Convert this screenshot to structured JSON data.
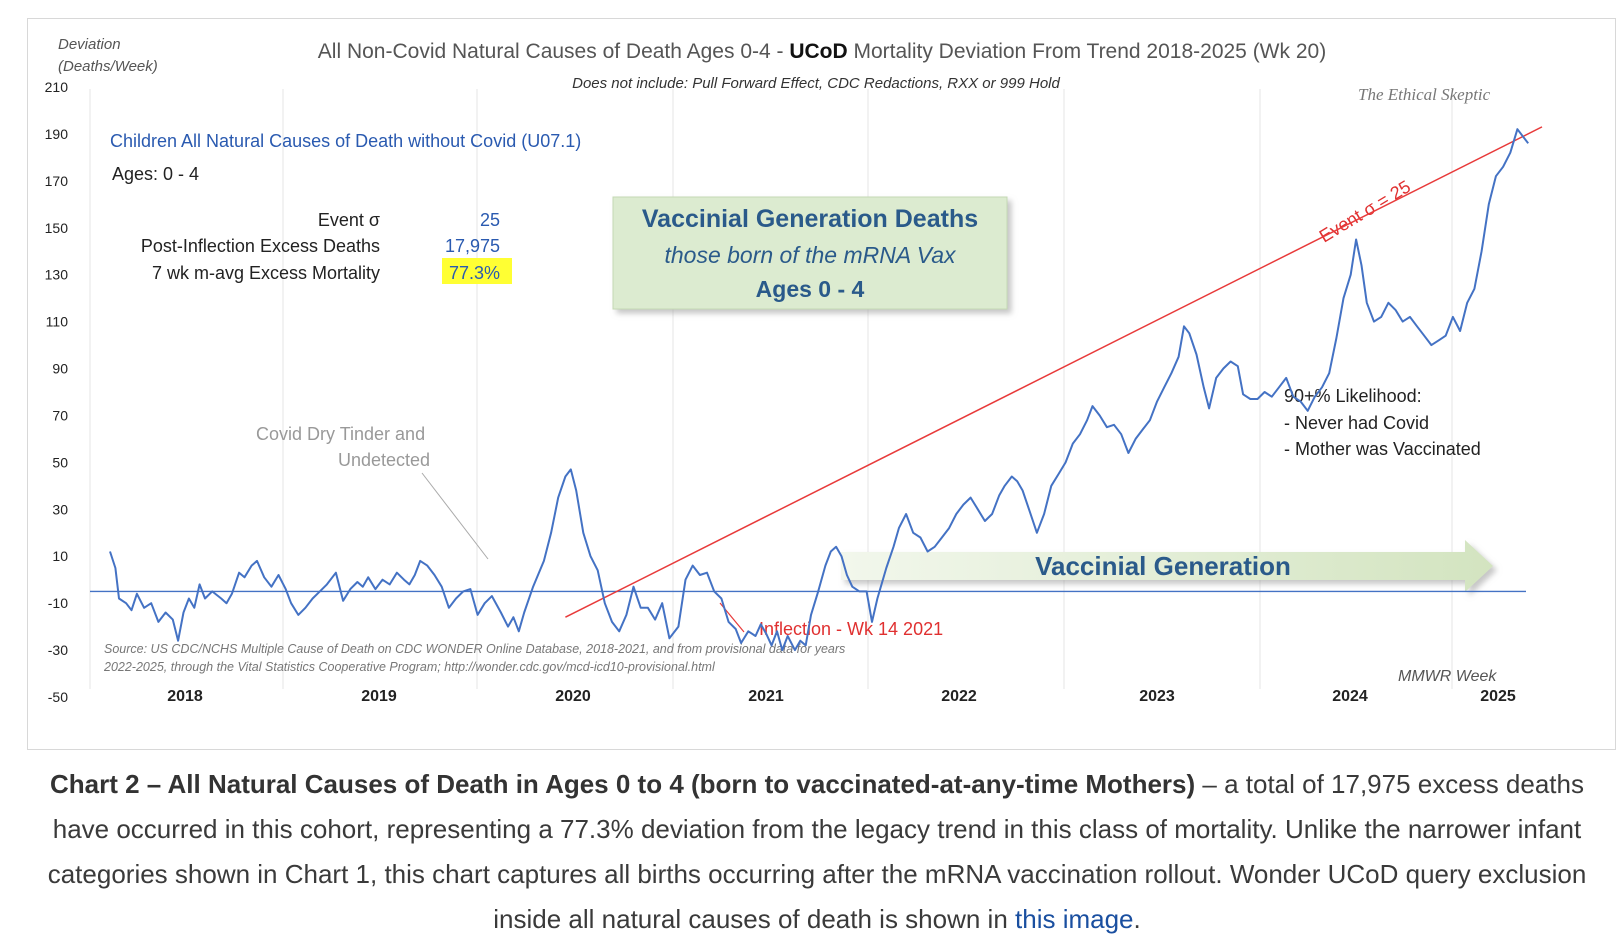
{
  "chart_data": {
    "type": "line",
    "title_pre": "All Non-Covid Natural Causes of Death Ages 0-4 - ",
    "title_bold": "UCoD",
    "title_post": " Mortality Deviation From Trend  2018-2025 (Wk 20)",
    "subtitle": "Does not include: Pull Forward Effect,  CDC Redactions, RXX or 999 Hold",
    "ylabel_line1": "Deviation",
    "ylabel_line2": "(Deaths/Week)",
    "xlabel": "MMWR Week",
    "brand": "The Ethical Skeptic",
    "ylim": [
      -50,
      210
    ],
    "y_ticks": [
      210,
      190,
      170,
      150,
      130,
      110,
      90,
      70,
      50,
      30,
      10,
      -10,
      -30,
      -50
    ],
    "x_years": [
      {
        "label": "2018",
        "x": 2018.5
      },
      {
        "label": "2019",
        "x": 2019.5
      },
      {
        "label": "2020",
        "x": 2020.5
      },
      {
        "label": "2021",
        "x": 2021.5
      },
      {
        "label": "2022",
        "x": 2022.5
      },
      {
        "label": "2023",
        "x": 2023.5
      },
      {
        "label": "2024",
        "x": 2024.5
      },
      {
        "label": "2025",
        "x": 2025.25
      }
    ],
    "year_gridlines": [
      2018,
      2019,
      2020,
      2021,
      2022,
      2023,
      2024,
      2025
    ],
    "baseline": -5,
    "series": [
      {
        "color": "#4472c4",
        "points": [
          [
            2018.0,
            12
          ],
          [
            2018.03,
            5
          ],
          [
            2018.05,
            -8
          ],
          [
            2018.09,
            -10
          ],
          [
            2018.12,
            -13
          ],
          [
            2018.15,
            -6
          ],
          [
            2018.19,
            -12
          ],
          [
            2018.23,
            -10
          ],
          [
            2018.27,
            -18
          ],
          [
            2018.31,
            -14
          ],
          [
            2018.35,
            -17
          ],
          [
            2018.38,
            -26
          ],
          [
            2018.41,
            -14
          ],
          [
            2018.44,
            -8
          ],
          [
            2018.47,
            -12
          ],
          [
            2018.5,
            -2
          ],
          [
            2018.53,
            -8
          ],
          [
            2018.57,
            -5
          ],
          [
            2018.62,
            -8
          ],
          [
            2018.65,
            -10
          ],
          [
            2018.68,
            -6
          ],
          [
            2018.72,
            3
          ],
          [
            2018.75,
            1
          ],
          [
            2018.79,
            6
          ],
          [
            2018.82,
            8
          ],
          [
            2018.86,
            1
          ],
          [
            2018.9,
            -3
          ],
          [
            2018.94,
            2
          ],
          [
            2018.98,
            -4
          ],
          [
            2019.01,
            -10
          ],
          [
            2019.05,
            -15
          ],
          [
            2019.09,
            -12
          ],
          [
            2019.13,
            -8
          ],
          [
            2019.17,
            -5
          ],
          [
            2019.21,
            -2
          ],
          [
            2019.26,
            3
          ],
          [
            2019.3,
            -9
          ],
          [
            2019.34,
            -4
          ],
          [
            2019.38,
            -1
          ],
          [
            2019.41,
            -3
          ],
          [
            2019.44,
            1
          ],
          [
            2019.48,
            -4
          ],
          [
            2019.52,
            0
          ],
          [
            2019.56,
            -2
          ],
          [
            2019.6,
            3
          ],
          [
            2019.64,
            0
          ],
          [
            2019.67,
            -2
          ],
          [
            2019.7,
            2
          ],
          [
            2019.73,
            8
          ],
          [
            2019.77,
            6
          ],
          [
            2019.81,
            2
          ],
          [
            2019.85,
            -3
          ],
          [
            2019.89,
            -12
          ],
          [
            2019.93,
            -8
          ],
          [
            2019.97,
            -5
          ],
          [
            2020.01,
            -4
          ],
          [
            2020.05,
            -15
          ],
          [
            2020.09,
            -10
          ],
          [
            2020.13,
            -7
          ],
          [
            2020.18,
            -14
          ],
          [
            2020.22,
            -20
          ],
          [
            2020.25,
            -16
          ],
          [
            2020.28,
            -22
          ],
          [
            2020.31,
            -14
          ],
          [
            2020.36,
            -3
          ],
          [
            2020.42,
            8
          ],
          [
            2020.46,
            20
          ],
          [
            2020.5,
            35
          ],
          [
            2020.54,
            44
          ],
          [
            2020.57,
            47
          ],
          [
            2020.6,
            38
          ],
          [
            2020.64,
            20
          ],
          [
            2020.68,
            10
          ],
          [
            2020.72,
            4
          ],
          [
            2020.76,
            -10
          ],
          [
            2020.8,
            -18
          ],
          [
            2020.84,
            -22
          ],
          [
            2020.88,
            -15
          ],
          [
            2020.92,
            -3
          ],
          [
            2020.96,
            -12
          ],
          [
            2021.0,
            -12
          ],
          [
            2021.04,
            -17
          ],
          [
            2021.08,
            -10
          ],
          [
            2021.12,
            -25
          ],
          [
            2021.17,
            -20
          ],
          [
            2021.21,
            0
          ],
          [
            2021.25,
            6
          ],
          [
            2021.29,
            2
          ],
          [
            2021.33,
            3
          ],
          [
            2021.37,
            -5
          ],
          [
            2021.41,
            -8
          ],
          [
            2021.45,
            -18
          ],
          [
            2021.49,
            -21
          ],
          [
            2021.52,
            -27
          ],
          [
            2021.56,
            -22
          ],
          [
            2021.6,
            -24
          ],
          [
            2021.63,
            -19
          ],
          [
            2021.66,
            -23
          ],
          [
            2021.69,
            -28
          ],
          [
            2021.72,
            -22
          ],
          [
            2021.75,
            -30
          ],
          [
            2021.78,
            -24
          ],
          [
            2021.82,
            -30
          ],
          [
            2021.85,
            -26
          ],
          [
            2021.88,
            -28
          ],
          [
            2021.91,
            -15
          ],
          [
            2021.95,
            -5
          ],
          [
            2021.99,
            6
          ],
          [
            2022.02,
            12
          ],
          [
            2022.05,
            14
          ],
          [
            2022.08,
            10
          ],
          [
            2022.11,
            2
          ],
          [
            2022.14,
            -3
          ],
          [
            2022.18,
            -5
          ],
          [
            2022.22,
            -5
          ],
          [
            2022.25,
            -18
          ],
          [
            2022.28,
            -8
          ],
          [
            2022.33,
            5
          ],
          [
            2022.37,
            14
          ],
          [
            2022.4,
            22
          ],
          [
            2022.44,
            28
          ],
          [
            2022.48,
            20
          ],
          [
            2022.52,
            18
          ],
          [
            2022.56,
            12
          ],
          [
            2022.6,
            14
          ],
          [
            2022.64,
            18
          ],
          [
            2022.68,
            22
          ],
          [
            2022.72,
            28
          ],
          [
            2022.76,
            32
          ],
          [
            2022.8,
            35
          ],
          [
            2022.84,
            30
          ],
          [
            2022.88,
            25
          ],
          [
            2022.92,
            28
          ],
          [
            2022.96,
            36
          ],
          [
            2022.99,
            40
          ],
          [
            2023.03,
            44
          ],
          [
            2023.06,
            42
          ],
          [
            2023.09,
            38
          ],
          [
            2023.13,
            29
          ],
          [
            2023.17,
            20
          ],
          [
            2023.21,
            28
          ],
          [
            2023.25,
            40
          ],
          [
            2023.29,
            45
          ],
          [
            2023.33,
            50
          ],
          [
            2023.37,
            58
          ],
          [
            2023.41,
            62
          ],
          [
            2023.45,
            68
          ],
          [
            2023.48,
            74
          ],
          [
            2023.52,
            70
          ],
          [
            2023.56,
            65
          ],
          [
            2023.6,
            66
          ],
          [
            2023.64,
            62
          ],
          [
            2023.68,
            54
          ],
          [
            2023.72,
            60
          ],
          [
            2023.76,
            64
          ],
          [
            2023.8,
            68
          ],
          [
            2023.84,
            76
          ],
          [
            2023.88,
            82
          ],
          [
            2023.92,
            88
          ],
          [
            2023.96,
            95
          ],
          [
            2023.99,
            108
          ],
          [
            2024.02,
            105
          ],
          [
            2024.06,
            96
          ],
          [
            2024.1,
            82
          ],
          [
            2024.13,
            73
          ],
          [
            2024.17,
            86
          ],
          [
            2024.21,
            90
          ],
          [
            2024.25,
            93
          ],
          [
            2024.29,
            91
          ],
          [
            2024.32,
            79
          ],
          [
            2024.36,
            77
          ],
          [
            2024.4,
            77
          ],
          [
            2024.44,
            80
          ],
          [
            2024.48,
            78
          ],
          [
            2024.52,
            82
          ],
          [
            2024.56,
            86
          ],
          [
            2024.6,
            78
          ],
          [
            2024.64,
            76
          ],
          [
            2024.68,
            72
          ],
          [
            2024.72,
            78
          ],
          [
            2024.76,
            82
          ],
          [
            2024.8,
            88
          ],
          [
            2024.84,
            103
          ],
          [
            2024.88,
            120
          ],
          [
            2024.92,
            130
          ],
          [
            2024.95,
            145
          ],
          [
            2024.98,
            134
          ],
          [
            2025.01,
            118
          ],
          [
            2025.05,
            110
          ],
          [
            2025.09,
            112
          ],
          [
            2025.13,
            118
          ],
          [
            2025.17,
            115
          ],
          [
            2025.21,
            110
          ],
          [
            2025.25,
            112
          ],
          [
            2025.29,
            108
          ],
          [
            2025.33,
            104
          ],
          [
            2025.37,
            100
          ],
          [
            2025.41,
            102
          ],
          [
            2025.45,
            104
          ],
          [
            2025.49,
            112
          ],
          [
            2025.53,
            106
          ],
          [
            2025.57,
            118
          ],
          [
            2025.61,
            124
          ],
          [
            2025.65,
            140
          ],
          [
            2025.69,
            160
          ],
          [
            2025.73,
            172
          ],
          [
            2025.77,
            176
          ],
          [
            2025.81,
            182
          ],
          [
            2025.85,
            192
          ],
          [
            2025.88,
            189
          ],
          [
            2025.91,
            186
          ]
        ]
      }
    ],
    "trend": {
      "color": "#e83a3a",
      "from": [
        2020.54,
        -16
      ],
      "to": [
        2025.92,
        193
      ]
    },
    "info_title": "Children All Natural Causes of Death without Covid (U07.1)",
    "info_ages": "Ages: 0 - 4",
    "stats": [
      {
        "label": "Event σ",
        "value": "25"
      },
      {
        "label": "Post-Inflection Excess Deaths",
        "value": "17,975"
      },
      {
        "label": "7 wk m-avg Excess Mortality",
        "value": "77.3%"
      }
    ],
    "box_line1": "Vaccinial  Generation  Deaths",
    "box_line2": "those born of the mRNA Vax",
    "box_line3": "Ages 0 - 4",
    "event_label": "Event σ = 25",
    "inflection_label": "Inflection - Wk 14 2021",
    "tinder_line1": "Covid Dry Tinder and",
    "tinder_line2": "Undetected",
    "arrow_label": "Vaccinial Generation",
    "likelihood_title": "90+% Likelihood:",
    "likelihood_items": [
      "- Never had Covid",
      "- Mother was Vaccinated"
    ],
    "source_line1": "Source: US CDC/NCHS Multiple Cause of Death on CDC WONDER Online Database, 2018-2021, and from provisional data for years",
    "source_line2": "2022-2025, through the Vital Statistics Cooperative Program; http://wonder.cdc.gov/mcd-icd10-provisional.html"
  },
  "caption": {
    "bold": "Chart 2 – All Natural Causes of Death in Ages 0 to 4 (born to vaccinated-at-any-time Mothers)",
    "text": " – a total of 17,975 excess deaths have occurred in this cohort, representing a 77.3% deviation from the legacy trend in this class of mortality. Unlike the narrower infant categories shown in Chart 1, this chart captures all births occurring after the mRNA vaccination rollout. Wonder UCoD query exclusion inside all natural causes of death is shown in ",
    "link": "this image",
    "end": "."
  }
}
